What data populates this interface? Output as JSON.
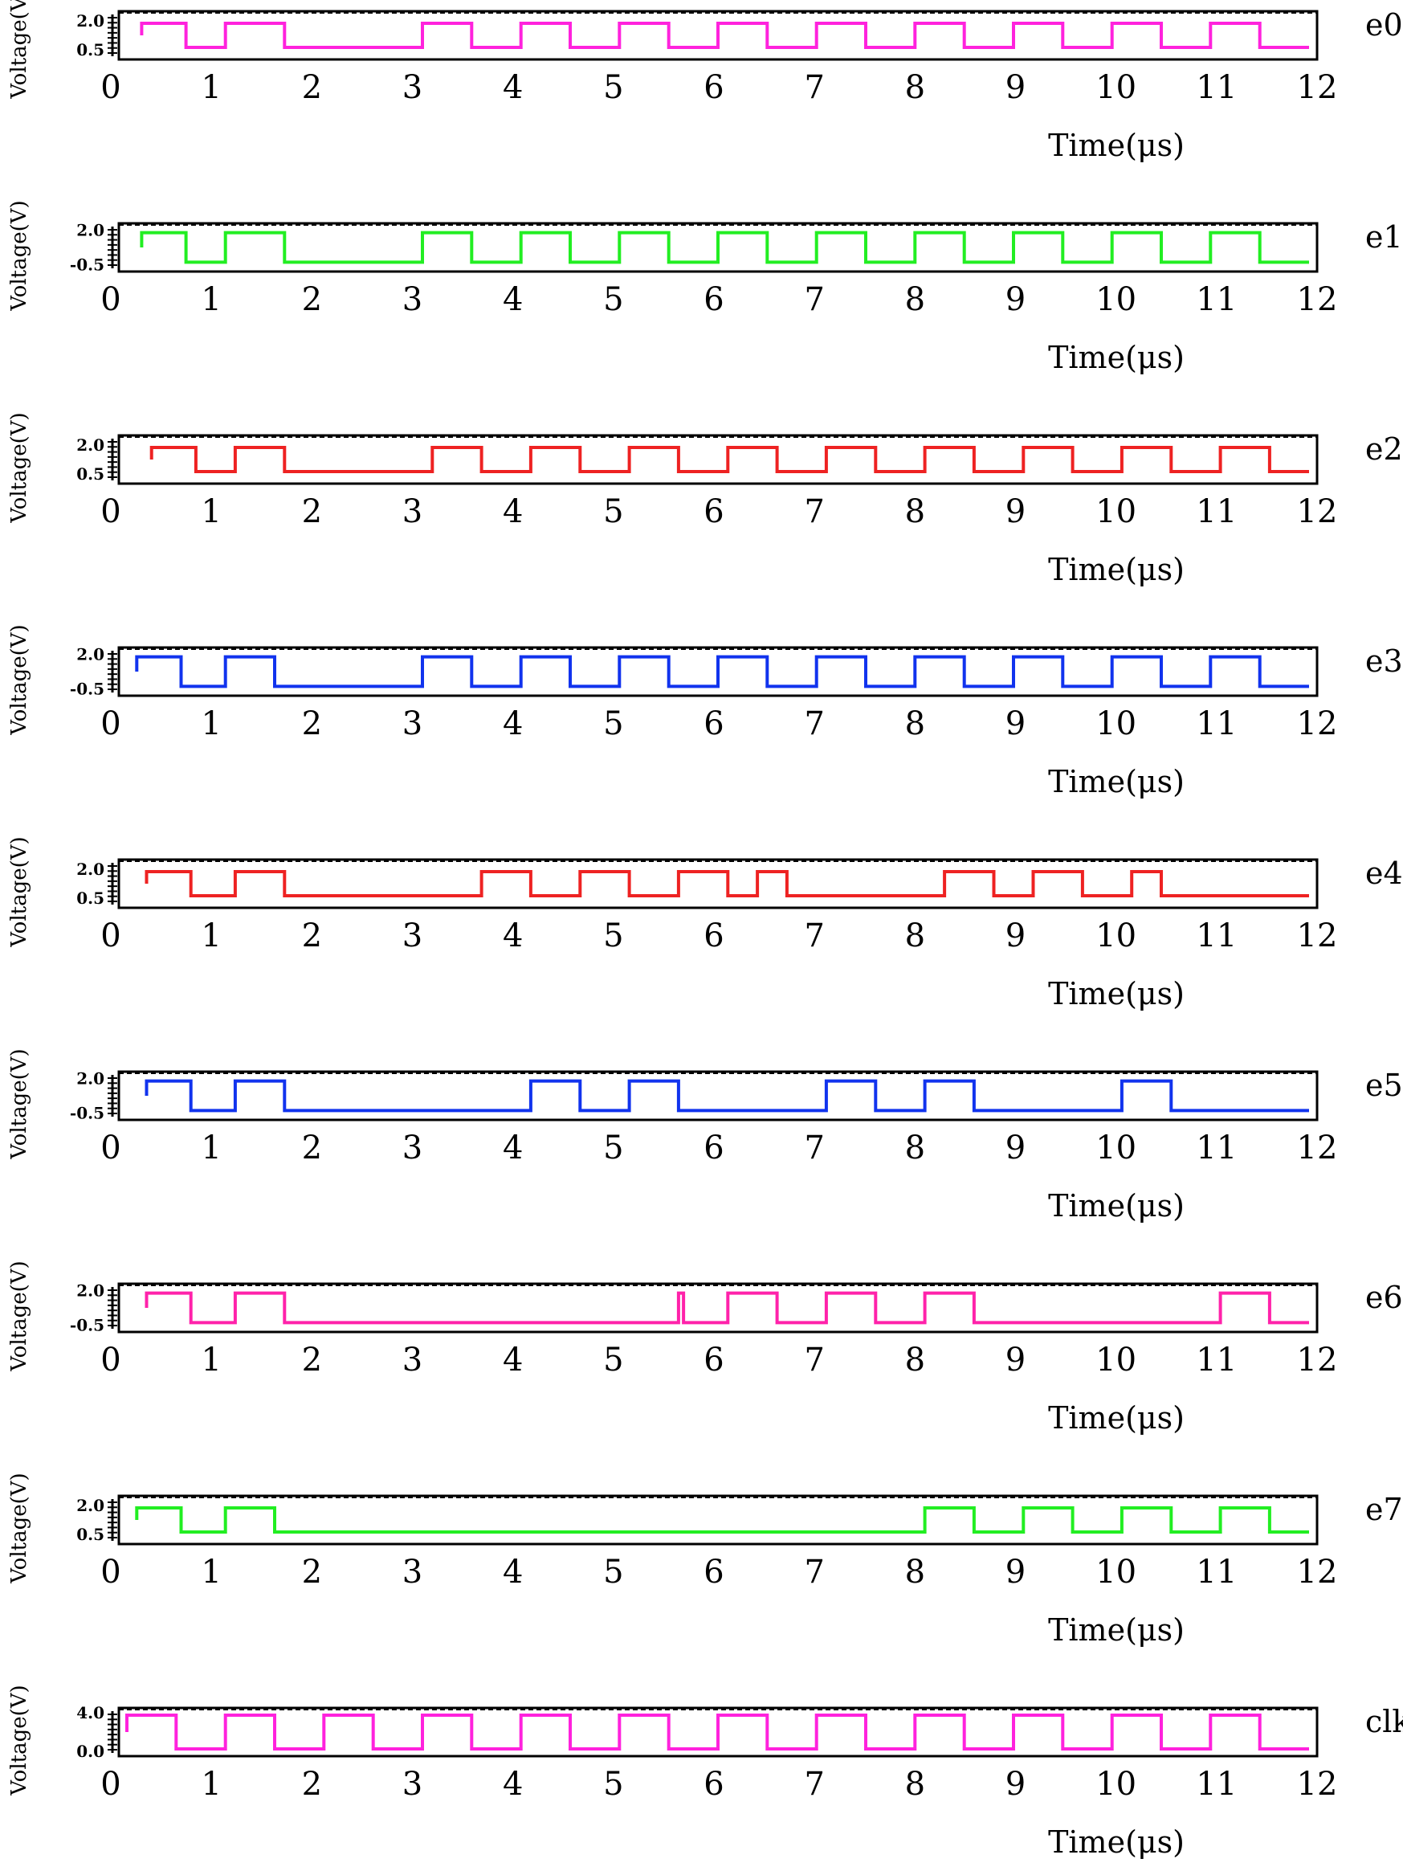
{
  "chart_data": [
    {
      "type": "line",
      "name": "e0",
      "color": "#ff22dd",
      "ylabel": "Voltage(V)",
      "xlabel": "Time(μs)",
      "yticks": [
        "2.0",
        "0.5"
      ],
      "ylevels": [
        2.0,
        0.5
      ],
      "ylim": [
        0,
        2.5
      ],
      "xlim": [
        0,
        12
      ],
      "xticks": [
        "0",
        "1",
        "2",
        "3",
        "4",
        "5",
        "6",
        "7",
        "8",
        "9",
        "10",
        "11",
        "12"
      ],
      "start": 0.15,
      "end": 12.0,
      "high_intervals": [
        [
          0.15,
          0.6
        ],
        [
          1.0,
          1.6
        ],
        [
          3.0,
          3.5
        ],
        [
          4.0,
          4.5
        ],
        [
          5.0,
          5.5
        ],
        [
          6.0,
          6.5
        ],
        [
          7.0,
          7.5
        ],
        [
          8.0,
          8.5
        ],
        [
          9.0,
          9.5
        ],
        [
          10.0,
          10.5
        ],
        [
          11.0,
          11.5
        ]
      ]
    },
    {
      "type": "line",
      "name": "e1",
      "color": "#22ee22",
      "ylabel": "Voltage(V)",
      "xlabel": "Time(μs)",
      "yticks": [
        "2.0",
        "-0.5"
      ],
      "ylevels": [
        2.0,
        -0.5
      ],
      "ylim": [
        -1,
        2.5
      ],
      "xlim": [
        0,
        12
      ],
      "xticks": [
        "0",
        "1",
        "2",
        "3",
        "4",
        "5",
        "6",
        "7",
        "8",
        "9",
        "10",
        "11",
        "12"
      ],
      "start": 0.15,
      "end": 12.0,
      "high_intervals": [
        [
          0.15,
          0.6
        ],
        [
          1.0,
          1.6
        ],
        [
          3.0,
          3.5
        ],
        [
          4.0,
          4.5
        ],
        [
          5.0,
          5.5
        ],
        [
          6.0,
          6.5
        ],
        [
          7.0,
          7.5
        ],
        [
          8.0,
          8.5
        ],
        [
          9.0,
          9.5
        ],
        [
          10.0,
          10.5
        ],
        [
          11.0,
          11.5
        ]
      ]
    },
    {
      "type": "line",
      "name": "e2",
      "color": "#ee2222",
      "ylabel": "Voltage(V)",
      "xlabel": "Time(μs)",
      "yticks": [
        "2.0",
        "0.5"
      ],
      "ylevels": [
        2.0,
        0.5
      ],
      "ylim": [
        0,
        2.5
      ],
      "xlim": [
        0,
        12
      ],
      "xticks": [
        "0",
        "1",
        "2",
        "3",
        "4",
        "5",
        "6",
        "7",
        "8",
        "9",
        "10",
        "11",
        "12"
      ],
      "start": 0.25,
      "end": 12.0,
      "high_intervals": [
        [
          0.25,
          0.7
        ],
        [
          1.1,
          1.6
        ],
        [
          3.1,
          3.6
        ],
        [
          4.1,
          4.6
        ],
        [
          5.1,
          5.6
        ],
        [
          6.1,
          6.6
        ],
        [
          7.1,
          7.6
        ],
        [
          8.1,
          8.6
        ],
        [
          9.1,
          9.6
        ],
        [
          10.1,
          10.6
        ],
        [
          11.1,
          11.6
        ]
      ]
    },
    {
      "type": "line",
      "name": "e3",
      "color": "#1133ee",
      "ylabel": "Voltage(V)",
      "xlabel": "Time(μs)",
      "yticks": [
        "2.0",
        "-0.5"
      ],
      "ylevels": [
        2.0,
        -0.5
      ],
      "ylim": [
        -1,
        2.5
      ],
      "xlim": [
        0,
        12
      ],
      "xticks": [
        "0",
        "1",
        "2",
        "3",
        "4",
        "5",
        "6",
        "7",
        "8",
        "9",
        "10",
        "11",
        "12"
      ],
      "start": 0.1,
      "end": 12.0,
      "high_intervals": [
        [
          0.1,
          0.55
        ],
        [
          1.0,
          1.5
        ],
        [
          3.0,
          3.5
        ],
        [
          4.0,
          4.5
        ],
        [
          5.0,
          5.5
        ],
        [
          6.0,
          6.5
        ],
        [
          7.0,
          7.5
        ],
        [
          8.0,
          8.5
        ],
        [
          9.0,
          9.5
        ],
        [
          10.0,
          10.5
        ],
        [
          11.0,
          11.5
        ]
      ]
    },
    {
      "type": "line",
      "name": "e4",
      "color": "#ee2222",
      "ylabel": "Voltage(V)",
      "xlabel": "Time(μs)",
      "yticks": [
        "2.0",
        "0.5"
      ],
      "ylevels": [
        2.0,
        0.5
      ],
      "ylim": [
        0,
        2.5
      ],
      "xlim": [
        0,
        12
      ],
      "xticks": [
        "0",
        "1",
        "2",
        "3",
        "4",
        "5",
        "6",
        "7",
        "8",
        "9",
        "10",
        "11",
        "12"
      ],
      "start": 0.2,
      "end": 12.0,
      "high_intervals": [
        [
          0.2,
          0.65
        ],
        [
          1.1,
          1.6
        ],
        [
          3.6,
          4.1
        ],
        [
          4.6,
          5.1
        ],
        [
          5.6,
          6.1
        ],
        [
          6.4,
          6.7
        ],
        [
          8.3,
          8.8
        ],
        [
          9.2,
          9.7
        ],
        [
          10.2,
          10.5
        ]
      ]
    },
    {
      "type": "line",
      "name": "e5",
      "color": "#1133ee",
      "ylabel": "Voltage(V)",
      "xlabel": "Time(μs)",
      "yticks": [
        "2.0",
        "-0.5"
      ],
      "ylevels": [
        2.0,
        -0.5
      ],
      "ylim": [
        -1,
        2.5
      ],
      "xlim": [
        0,
        12
      ],
      "xticks": [
        "0",
        "1",
        "2",
        "3",
        "4",
        "5",
        "6",
        "7",
        "8",
        "9",
        "10",
        "11",
        "12"
      ],
      "start": 0.2,
      "end": 12.0,
      "high_intervals": [
        [
          0.2,
          0.65
        ],
        [
          1.1,
          1.6
        ],
        [
          4.1,
          4.6
        ],
        [
          5.1,
          5.6
        ],
        [
          7.1,
          7.6
        ],
        [
          8.1,
          8.6
        ],
        [
          10.1,
          10.6
        ]
      ]
    },
    {
      "type": "line",
      "name": "e6",
      "color": "#ff22aa",
      "ylabel": "Voltage(V)",
      "xlabel": "Time(μs)",
      "yticks": [
        "2.0",
        "-0.5"
      ],
      "ylevels": [
        2.0,
        -0.5
      ],
      "ylim": [
        -1,
        2.5
      ],
      "xlim": [
        0,
        12
      ],
      "xticks": [
        "0",
        "1",
        "2",
        "3",
        "4",
        "5",
        "6",
        "7",
        "8",
        "9",
        "10",
        "11",
        "12"
      ],
      "start": 0.2,
      "end": 12.0,
      "high_intervals": [
        [
          0.2,
          0.65
        ],
        [
          1.1,
          1.6
        ],
        [
          5.6,
          5.65
        ],
        [
          6.1,
          6.6
        ],
        [
          7.1,
          7.6
        ],
        [
          8.1,
          8.6
        ],
        [
          11.1,
          11.6
        ]
      ]
    },
    {
      "type": "line",
      "name": "e7",
      "color": "#22ee22",
      "ylabel": "Voltage(V)",
      "xlabel": "Time(μs)",
      "yticks": [
        "2.0",
        "0.5"
      ],
      "ylevels": [
        2.0,
        0.5
      ],
      "ylim": [
        0,
        2.5
      ],
      "xlim": [
        0,
        12
      ],
      "xticks": [
        "0",
        "1",
        "2",
        "3",
        "4",
        "5",
        "6",
        "7",
        "8",
        "9",
        "10",
        "11",
        "12"
      ],
      "start": 0.1,
      "end": 12.0,
      "high_intervals": [
        [
          0.1,
          0.55
        ],
        [
          1.0,
          1.5
        ],
        [
          8.1,
          8.6
        ],
        [
          9.1,
          9.6
        ],
        [
          10.1,
          10.6
        ],
        [
          11.1,
          11.6
        ]
      ]
    },
    {
      "type": "line",
      "name": "clk",
      "color": "#ff22dd",
      "ylabel": "Voltage(V)",
      "xlabel": "Time(μs)",
      "yticks": [
        "4.0",
        "0.0"
      ],
      "ylevels": [
        4.0,
        0.0
      ],
      "ylim": [
        -0.5,
        4.5
      ],
      "xlim": [
        0,
        12
      ],
      "xticks": [
        "0",
        "1",
        "2",
        "3",
        "4",
        "5",
        "6",
        "7",
        "8",
        "9",
        "10",
        "11",
        "12"
      ],
      "start": 0.0,
      "end": 12.0,
      "high_intervals": [
        [
          0.0,
          0.5
        ],
        [
          1.0,
          1.5
        ],
        [
          2.0,
          2.5
        ],
        [
          3.0,
          3.5
        ],
        [
          4.0,
          4.5
        ],
        [
          5.0,
          5.5
        ],
        [
          6.0,
          6.5
        ],
        [
          7.0,
          7.5
        ],
        [
          8.0,
          8.5
        ],
        [
          9.0,
          9.5
        ],
        [
          10.0,
          10.5
        ],
        [
          11.0,
          11.5
        ]
      ]
    }
  ]
}
